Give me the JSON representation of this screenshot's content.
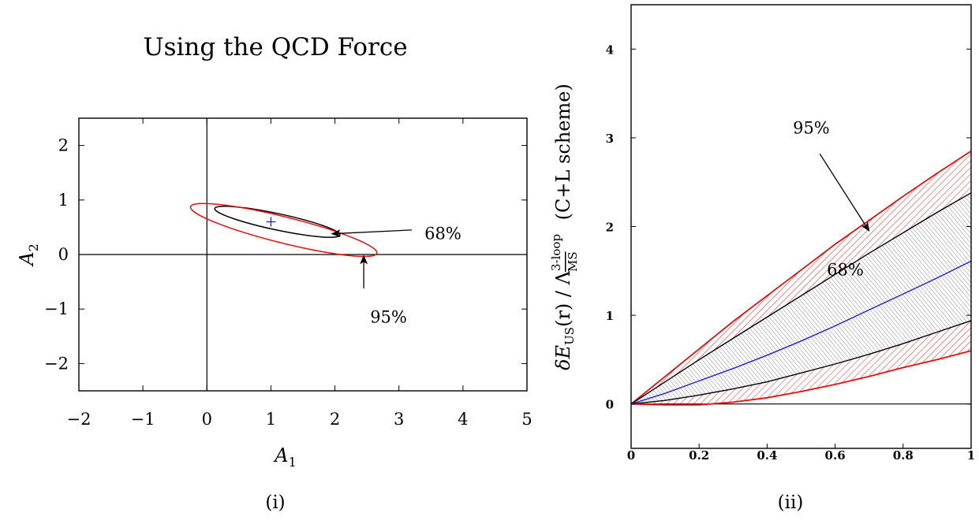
{
  "figure": {
    "title": "Using the QCD Force",
    "panel_labels": [
      "(i)",
      "(ii)"
    ]
  },
  "chart_data": [
    {
      "type": "scatter",
      "panel": "(i)",
      "title": "Using the QCD Force",
      "xlabel_main": "A",
      "xlabel_sub": "1",
      "ylabel_main": "A",
      "ylabel_sub": "2",
      "xlim": [
        -2,
        5
      ],
      "ylim": [
        -2.5,
        2.5
      ],
      "xticks": [
        -2,
        -1,
        0,
        1,
        2,
        3,
        4,
        5
      ],
      "xtick_labels": [
        "−2",
        "−1",
        "0",
        "1",
        "2",
        "3",
        "4",
        "5"
      ],
      "yticks": [
        2,
        1,
        0,
        -1,
        -2
      ],
      "ytick_labels": [
        "2",
        "1",
        "0",
        "−1",
        "−2"
      ],
      "zero_lines": true,
      "best_fit": {
        "x": 1.0,
        "y": 0.6,
        "marker": "+",
        "color": "#2222cc"
      },
      "contours": [
        {
          "level": "68%",
          "color": "#000000",
          "center": [
            1.1,
            0.6
          ],
          "semi_major": 1.0,
          "semi_minor": 0.15,
          "angle_deg": -12
        },
        {
          "level": "95%",
          "color": "#dd1111",
          "center": [
            1.2,
            0.45
          ],
          "semi_major": 1.5,
          "semi_minor": 0.24,
          "angle_deg": -14
        }
      ],
      "annotations": [
        {
          "text": "68%",
          "text_at": [
            3.4,
            0.38
          ],
          "arrow_from": [
            3.2,
            0.45
          ],
          "arrow_to": [
            1.95,
            0.38
          ]
        },
        {
          "text": "95%",
          "text_at": [
            2.55,
            -1.15
          ],
          "arrow_from": [
            2.45,
            -0.62
          ],
          "arrow_to": [
            2.45,
            -0.02
          ]
        }
      ]
    },
    {
      "type": "area",
      "panel": "(ii)",
      "ylabel_parts": {
        "prefix": "δ",
        "E": "E",
        "E_sub": "US",
        "mid": "(r) / ",
        "lambda": "Λ",
        "lambda_sup": "3-loop",
        "lambda_sub": "MS",
        "scheme": "(C+L scheme)"
      },
      "xlim": [
        0,
        1
      ],
      "ylim": [
        -0.5,
        4.5
      ],
      "xticks": [
        0,
        0.2,
        0.4,
        0.6,
        0.8,
        1
      ],
      "xtick_labels": [
        "0",
        "0.2",
        "0.4",
        "0.6",
        "0.8",
        "1"
      ],
      "yticks": [
        0,
        1,
        2,
        3,
        4
      ],
      "ytick_labels": [
        "0",
        "1",
        "2",
        "3",
        "4"
      ],
      "x": [
        0,
        0.1,
        0.2,
        0.3,
        0.4,
        0.5,
        0.6,
        0.7,
        0.8,
        0.9,
        1.0
      ],
      "series": [
        {
          "role": "95% upper",
          "color": "#dd1111",
          "values": [
            0,
            0.31,
            0.62,
            0.93,
            1.22,
            1.51,
            1.8,
            2.07,
            2.34,
            2.6,
            2.85
          ]
        },
        {
          "role": "68% upper",
          "color": "#000000",
          "values": [
            0,
            0.25,
            0.5,
            0.74,
            0.98,
            1.22,
            1.46,
            1.7,
            1.93,
            2.16,
            2.38
          ]
        },
        {
          "role": "central",
          "color": "#2222cc",
          "values": [
            0,
            0.12,
            0.26,
            0.4,
            0.55,
            0.71,
            0.88,
            1.06,
            1.24,
            1.42,
            1.61
          ]
        },
        {
          "role": "68% lower",
          "color": "#000000",
          "values": [
            0,
            0.04,
            0.1,
            0.17,
            0.25,
            0.35,
            0.45,
            0.56,
            0.68,
            0.81,
            0.94
          ]
        },
        {
          "role": "95% lower",
          "color": "#dd1111",
          "values": [
            0,
            -0.01,
            -0.01,
            0.02,
            0.07,
            0.14,
            0.22,
            0.31,
            0.41,
            0.5,
            0.6
          ]
        }
      ],
      "bands": [
        {
          "label": "95%",
          "upper": "95% upper",
          "lower": "95% lower",
          "hatch_color": "#dd1111"
        },
        {
          "label": "68%",
          "upper": "68% upper",
          "lower": "68% lower",
          "hatch_color": "#333333"
        }
      ],
      "annotations": [
        {
          "text": "95%",
          "text_at": [
            0.53,
            3.05
          ],
          "arrow_from": [
            0.555,
            2.82
          ],
          "arrow_to": [
            0.7,
            1.95
          ]
        },
        {
          "text": "68%",
          "text_at": [
            0.63,
            1.45
          ]
        }
      ]
    }
  ]
}
